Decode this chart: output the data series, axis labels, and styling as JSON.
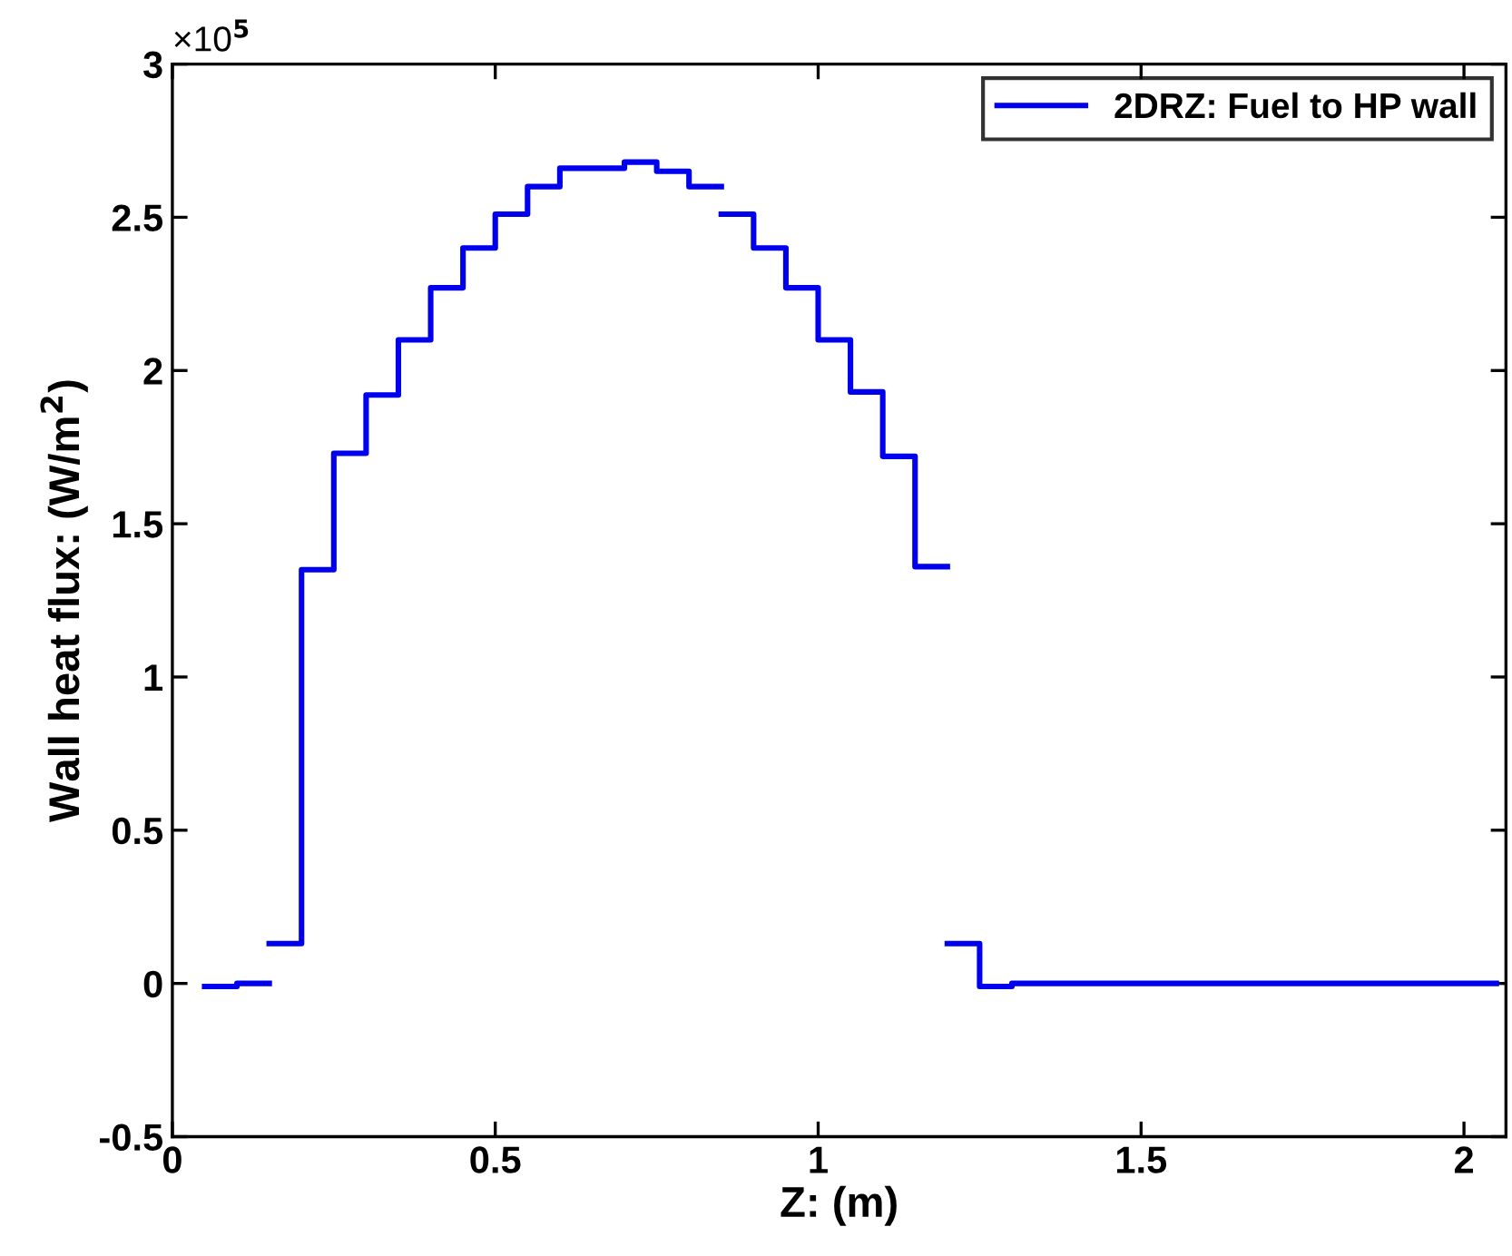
{
  "chart_data": {
    "type": "step",
    "xlabel": "Z: (m)",
    "ylabel": "Wall heat flux: (W/m$^{2}$)",
    "annotations": [
      "×10$^{5}$"
    ],
    "xlim": [
      0,
      2.065
    ],
    "xticks": [
      0,
      0.5,
      1,
      1.5,
      2
    ],
    "ylim": [
      -0.5,
      3
    ],
    "yticks": [
      {
        "value": -0.5,
        "label": "-0.5"
      },
      0,
      0.5,
      1,
      1.5,
      2,
      2.5,
      3
    ],
    "grid": false,
    "legend": "top right",
    "line_style": "solid",
    "marker": "none",
    "series": [
      {
        "name": "2DRZ: Fuel to HP wall",
        "color": "#0000ee",
        "x": [
          0.05,
          0.1,
          0.15
        ],
        "values": [
          -0.01,
          0,
          0
        ]
      },
      {
        "color": "#0000ee",
        "x": [
          0.15,
          0.2,
          0.25,
          0.3,
          0.35,
          0.4,
          0.45,
          0.5,
          0.55,
          0.6,
          0.65,
          0.7,
          0.75,
          0.8,
          0.85
        ],
        "values": [
          0.13,
          1.35,
          1.73,
          1.92,
          2.1,
          2.27,
          2.4,
          2.51,
          2.6,
          2.66,
          2.66,
          2.68,
          2.65,
          2.6,
          2.6
        ]
      },
      {
        "color": "#0000ee",
        "x": [
          0.85,
          0.9,
          0.95,
          1.0,
          1.05,
          1.1,
          1.15,
          1.2
        ],
        "values": [
          2.51,
          2.4,
          2.27,
          2.1,
          1.93,
          1.72,
          1.36,
          1.36
        ]
      },
      {
        "color": "#0000ee",
        "x": [
          1.2,
          1.25,
          1.3,
          2.05
        ],
        "values": [
          0.13,
          -0.01,
          0,
          0
        ]
      }
    ]
  }
}
